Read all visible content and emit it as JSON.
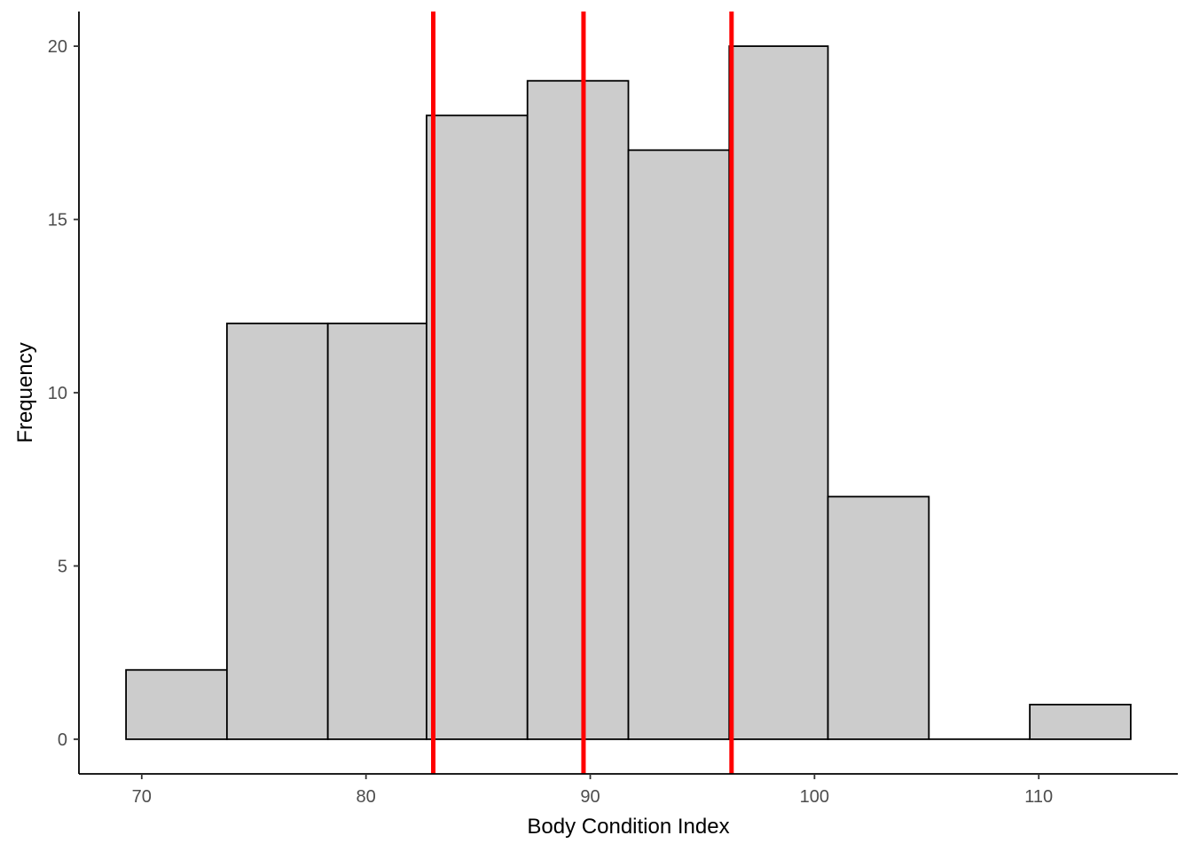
{
  "chart_data": {
    "type": "bar",
    "xlabel": "Body Condition Index",
    "ylabel": "Frequency",
    "xlim": [
      67.2,
      116.2
    ],
    "ylim": [
      -1,
      21
    ],
    "x_ticks": [
      70,
      80,
      90,
      100,
      110
    ],
    "y_ticks": [
      0,
      5,
      10,
      15,
      20
    ],
    "bins": [
      {
        "start": 69.3,
        "end": 73.8,
        "count": 2
      },
      {
        "start": 73.8,
        "end": 78.3,
        "count": 12
      },
      {
        "start": 78.3,
        "end": 82.7,
        "count": 12
      },
      {
        "start": 82.7,
        "end": 87.2,
        "count": 18
      },
      {
        "start": 87.2,
        "end": 91.7,
        "count": 19
      },
      {
        "start": 91.7,
        "end": 96.2,
        "count": 17
      },
      {
        "start": 96.2,
        "end": 100.6,
        "count": 20
      },
      {
        "start": 100.6,
        "end": 105.1,
        "count": 7
      },
      {
        "start": 105.1,
        "end": 109.6,
        "count": 0
      },
      {
        "start": 109.6,
        "end": 114.1,
        "count": 1
      }
    ],
    "vlines": [
      83.0,
      89.7,
      96.3
    ],
    "colors": {
      "bar_fill": "#cccccc",
      "bar_stroke": "#000000",
      "vline": "#ff0000"
    },
    "grid": false
  }
}
